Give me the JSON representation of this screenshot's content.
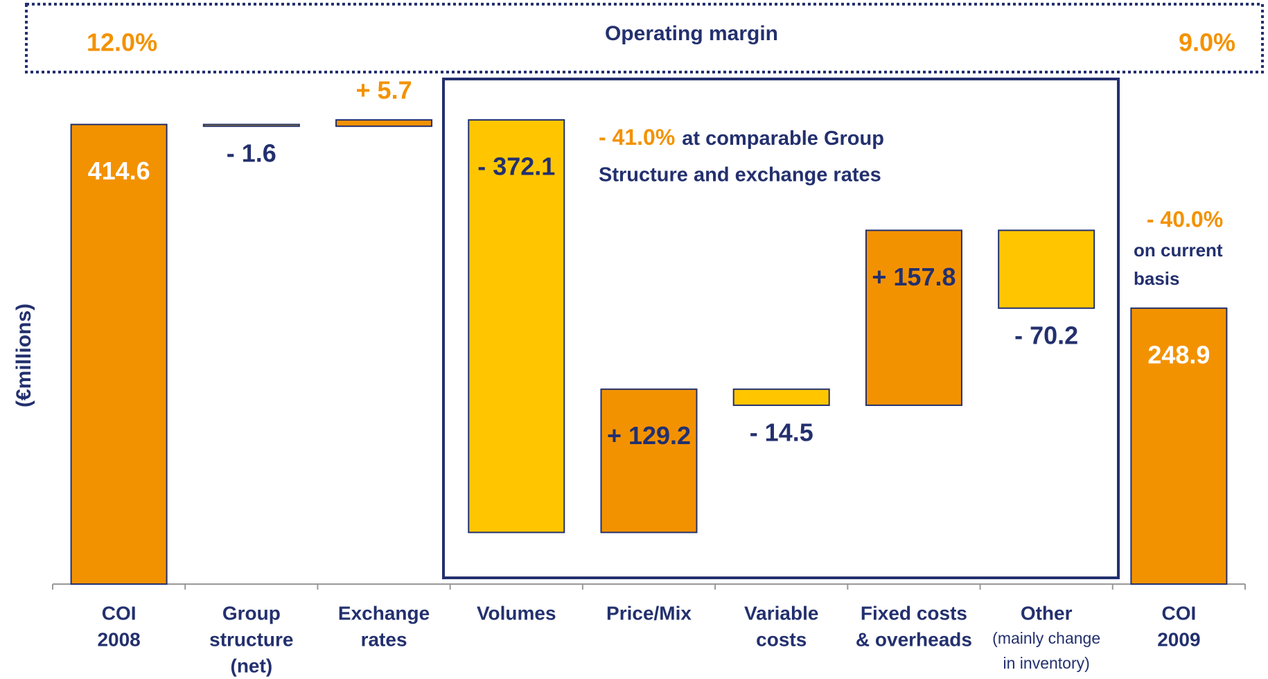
{
  "chart_data": {
    "type": "waterfall",
    "y_label": "(€millions)",
    "categories": [
      [
        "COI",
        "2008"
      ],
      [
        "Group",
        "structure",
        "(net)"
      ],
      [
        "Exchange",
        "rates"
      ],
      [
        "Volumes"
      ],
      [
        "Price/Mix"
      ],
      [
        "Variable",
        "costs"
      ],
      [
        "Fixed costs",
        "& overheads"
      ],
      [
        "Other"
      ],
      [
        "COI",
        "2009"
      ]
    ],
    "category_notes": [
      null,
      null,
      null,
      null,
      null,
      null,
      null,
      [
        "(mainly change",
        "in inventory)"
      ],
      null
    ],
    "values": [
      414.6,
      -1.6,
      5.7,
      -372.1,
      129.2,
      -14.5,
      157.8,
      -70.2,
      248.9
    ],
    "value_labels": [
      "414.6",
      "- 1.6",
      "+ 5.7",
      "- 372.1",
      "+ 129.2",
      "- 14.5",
      "+ 157.8",
      "- 70.2",
      "248.9"
    ],
    "measure": [
      "absolute",
      "relative",
      "relative",
      "relative",
      "relative",
      "relative",
      "relative",
      "relative",
      "absolute"
    ],
    "total_color": "#f39200",
    "increase_color": "#f39200",
    "decrease_color": "#ffc600",
    "ylim": [
      0,
      450
    ],
    "annotations": {
      "margin_title": "Operating margin",
      "margin_start": "12.0%",
      "margin_end": "9.0%",
      "comparable_value": "- 41.0%",
      "comparable_text": [
        "at comparable Group",
        "Structure and exchange rates"
      ],
      "current_value": "- 40.0%",
      "current_text": [
        "on current",
        "basis"
      ]
    }
  }
}
